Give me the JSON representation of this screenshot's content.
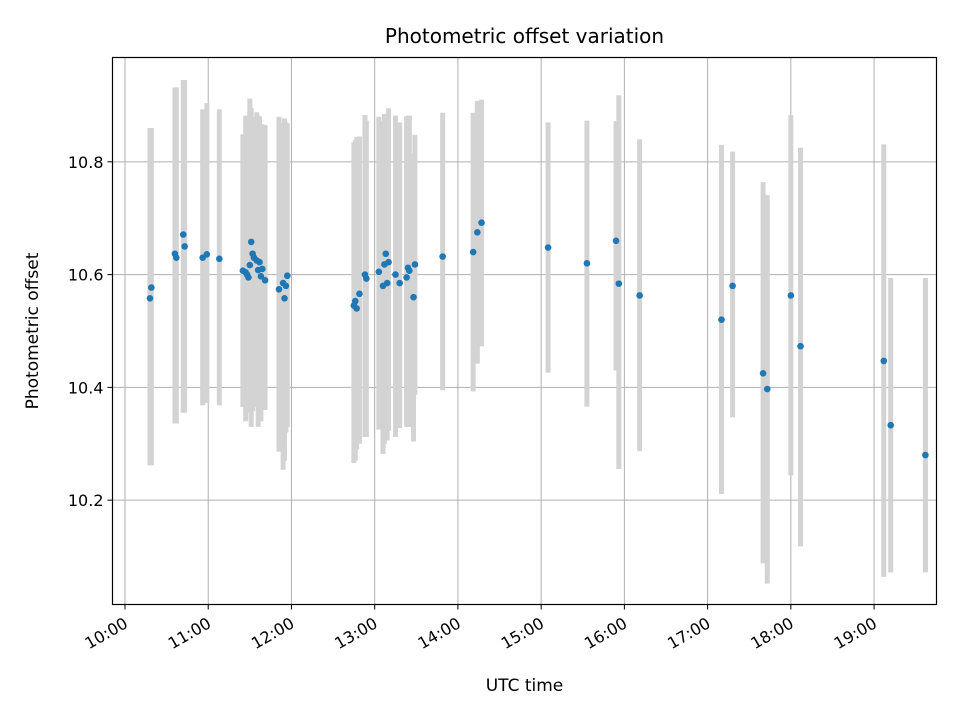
{
  "chart_data": {
    "type": "scatter",
    "title": "Photometric offset variation",
    "xlabel": "UTC time",
    "ylabel": "Photometric offset",
    "xlim": [
      "09:51",
      "19:45"
    ],
    "ylim": [
      10.015,
      10.985
    ],
    "x_ticks": [
      "10:00",
      "11:00",
      "12:00",
      "13:00",
      "14:00",
      "15:00",
      "16:00",
      "17:00",
      "18:00",
      "19:00"
    ],
    "y_ticks": [
      "10.2",
      "10.4",
      "10.6",
      "10.8"
    ],
    "grid": true,
    "colors": {
      "points": "#1f77b4",
      "errorbars": "#d3d3d3",
      "grid": "#b0b0b0"
    },
    "series": [
      {
        "x": [
          "10:18",
          "10:19",
          "10:36",
          "10:37",
          "10:42",
          "10:43",
          "10:56",
          "10:59",
          "11:08",
          "11:25",
          "11:27",
          "11:28",
          "11:29",
          "11:30",
          "11:31",
          "11:32",
          "11:33",
          "11:35",
          "11:36",
          "11:37",
          "11:38",
          "11:39",
          "11:41",
          "11:51",
          "11:54",
          "11:55",
          "11:56",
          "11:57",
          "12:45",
          "12:46",
          "12:47",
          "12:49",
          "12:53",
          "12:54",
          "13:03",
          "13:06",
          "13:07",
          "13:08",
          "13:09",
          "13:10",
          "13:15",
          "13:18",
          "13:23",
          "13:24",
          "13:25",
          "13:28",
          "13:29",
          "13:49",
          "14:11",
          "14:14",
          "14:17",
          "15:05",
          "15:33",
          "15:54",
          "15:56",
          "16:11",
          "17:10",
          "17:18",
          "17:40",
          "17:43",
          "18:00",
          "18:07",
          "19:07",
          "19:12",
          "19:37"
        ],
        "y": [
          10.558,
          10.577,
          10.637,
          10.63,
          10.671,
          10.65,
          10.63,
          10.636,
          10.628,
          10.607,
          10.604,
          10.6,
          10.595,
          10.617,
          10.658,
          10.637,
          10.63,
          10.625,
          10.608,
          10.622,
          10.597,
          10.61,
          10.59,
          10.574,
          10.585,
          10.558,
          10.58,
          10.598,
          10.545,
          10.553,
          10.54,
          10.566,
          10.6,
          10.593,
          10.605,
          10.58,
          10.618,
          10.637,
          10.585,
          10.622,
          10.6,
          10.585,
          10.595,
          10.612,
          10.607,
          10.56,
          10.618,
          10.632,
          10.64,
          10.675,
          10.692,
          10.648,
          10.62,
          10.66,
          10.584,
          10.563,
          10.52,
          10.58,
          10.425,
          10.397,
          10.563,
          10.473,
          10.447,
          10.333,
          10.28
        ],
        "err_low": [
          10.262,
          10.262,
          10.336,
          10.336,
          10.355,
          10.355,
          10.368,
          10.372,
          10.368,
          10.365,
          10.34,
          10.355,
          10.38,
          10.372,
          10.33,
          10.358,
          10.375,
          10.365,
          10.33,
          10.362,
          10.34,
          10.362,
          10.36,
          10.286,
          10.254,
          10.27,
          10.32,
          10.33,
          10.266,
          10.27,
          10.29,
          10.3,
          10.312,
          10.312,
          10.325,
          10.282,
          10.3,
          10.322,
          10.306,
          10.323,
          10.312,
          10.328,
          10.33,
          10.33,
          10.33,
          10.304,
          10.387,
          10.395,
          10.393,
          10.442,
          10.473,
          10.426,
          10.366,
          10.43,
          10.255,
          10.287,
          10.211,
          10.347,
          10.088,
          10.052,
          10.244,
          10.118,
          10.064,
          10.072,
          10.072
        ],
        "err_high": [
          10.86,
          10.86,
          10.932,
          10.932,
          10.945,
          10.945,
          10.893,
          10.904,
          10.893,
          10.849,
          10.882,
          10.873,
          10.882,
          10.912,
          10.896,
          10.86,
          10.88,
          10.888,
          10.882,
          10.88,
          10.867,
          10.866,
          10.865,
          10.88,
          10.869,
          10.877,
          10.87,
          10.868,
          10.834,
          10.838,
          10.844,
          10.845,
          10.883,
          10.873,
          10.88,
          10.872,
          10.885,
          10.864,
          10.846,
          10.895,
          10.882,
          10.87,
          10.88,
          10.882,
          10.882,
          10.815,
          10.848,
          10.887,
          10.887,
          10.908,
          10.91,
          10.87,
          10.873,
          10.872,
          10.918,
          10.84,
          10.83,
          10.818,
          10.764,
          10.741,
          10.883,
          10.825,
          10.831,
          10.594,
          10.594
        ]
      }
    ]
  }
}
